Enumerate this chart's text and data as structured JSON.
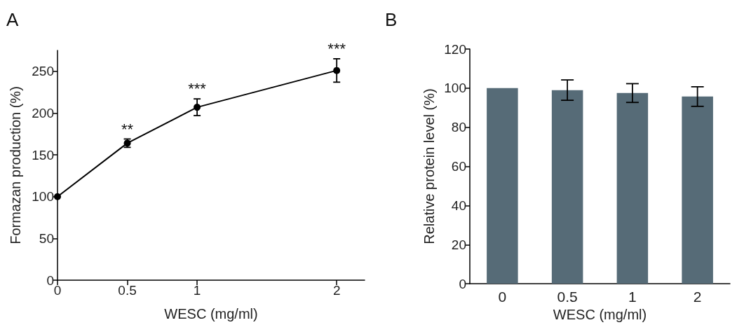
{
  "chart_data": [
    {
      "type": "line",
      "title": "A",
      "xlabel": "WESC (mg/ml)",
      "ylabel": "Formazan production (%)",
      "x": [
        0,
        0.5,
        1,
        2
      ],
      "series": [
        {
          "color": "#000000",
          "values": [
            100,
            164,
            207,
            251
          ],
          "errors": [
            null,
            5,
            10,
            14
          ]
        }
      ],
      "xlim": [
        0,
        2.2
      ],
      "xticks": [
        0,
        0.5,
        1,
        2
      ],
      "ylim": [
        0,
        275
      ],
      "yticks": [
        0,
        50,
        100,
        150,
        200,
        250
      ],
      "marker": "circle",
      "line_style": "solid",
      "annotations": [
        {
          "text": "**",
          "x": 0.5,
          "y": 164
        },
        {
          "text": "***",
          "x": 1,
          "y": 207
        },
        {
          "text": "***",
          "x": 2,
          "y": 251
        }
      ]
    },
    {
      "type": "bar",
      "title": "B",
      "xlabel": "WESC (mg/ml)",
      "ylabel": "Relative protein level (%)",
      "categories": [
        "0",
        "0.5",
        "1",
        "2"
      ],
      "series": [
        {
          "color": "#566b77",
          "values": [
            100,
            99,
            97.5,
            95.7
          ],
          "errors": [
            null,
            5.2,
            4.8,
            5
          ]
        }
      ],
      "ylim": [
        0,
        120
      ],
      "yticks": [
        0,
        20,
        40,
        60,
        80,
        100,
        120
      ]
    }
  ]
}
